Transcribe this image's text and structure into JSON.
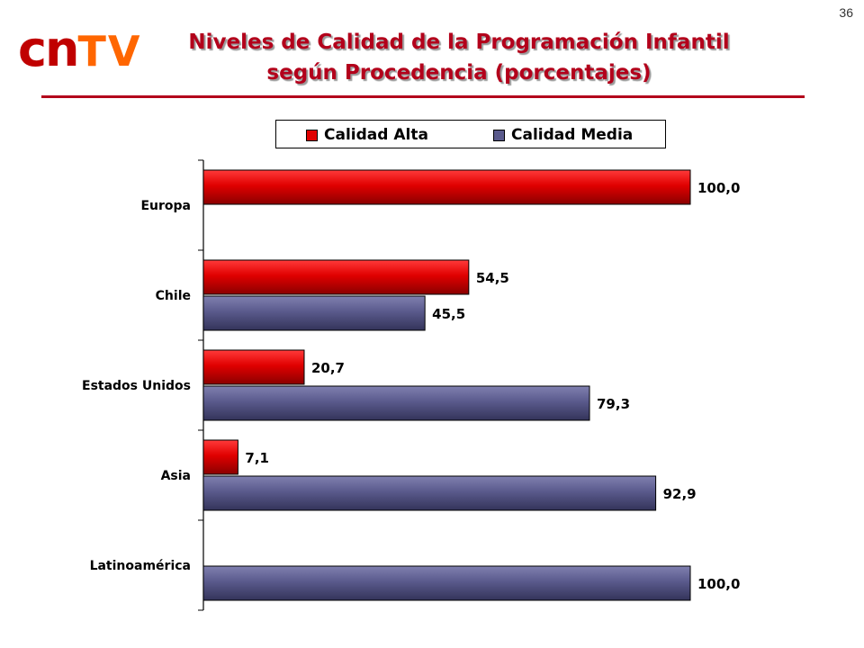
{
  "page_number": "36",
  "logo": {
    "part1": "cn",
    "part2": "TV"
  },
  "title_line1": "Niveles de Calidad de la Programación Infantil",
  "title_line2": "según Procedencia (porcentajes)",
  "colors": {
    "brand_red": "#b3001b",
    "logo_cn": "#c00000",
    "logo_tv": "#ff6600",
    "calidad_alta": "#e00000",
    "calidad_media": "#5a5a8c"
  },
  "chart_data": {
    "type": "bar",
    "orientation": "horizontal",
    "categories": [
      "Europa",
      "Chile",
      "Estados Unidos",
      "Asia",
      "Latinoamérica"
    ],
    "series": [
      {
        "name": "Calidad Alta",
        "color": "#e00000",
        "values": [
          100.0,
          54.5,
          20.7,
          7.1,
          null
        ]
      },
      {
        "name": "Calidad Media",
        "color": "#5a5a8c",
        "values": [
          null,
          45.5,
          79.3,
          92.9,
          100.0
        ]
      }
    ],
    "value_labels": [
      [
        "100,0",
        "54,5",
        "20,7",
        "7,1",
        ""
      ],
      [
        "",
        "45,5",
        "79,3",
        "92,9",
        "100,0"
      ]
    ],
    "xlim": [
      0,
      100
    ],
    "legend": "top",
    "grid": false
  }
}
